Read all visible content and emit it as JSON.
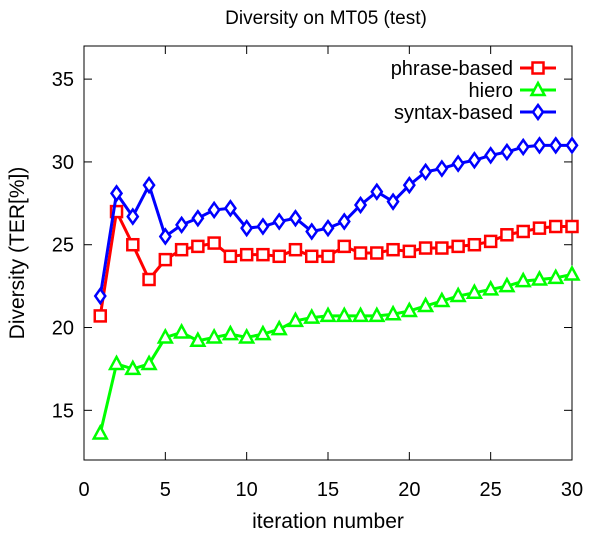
{
  "chart_data": {
    "type": "line",
    "title": "Diversity on MT05 (test)",
    "xlabel": "iteration number",
    "ylabel": "Diversity (TER[%])",
    "xlim": [
      0,
      30
    ],
    "ylim": [
      12,
      37
    ],
    "xticks": [
      0,
      5,
      10,
      15,
      20,
      25,
      30
    ],
    "yticks": [
      15,
      20,
      25,
      30,
      35
    ],
    "x_tick_labels": [
      "0",
      "5",
      "10",
      "15",
      "20",
      "25",
      "30"
    ],
    "y_tick_labels": [
      "15",
      "20",
      "25",
      "30",
      "35"
    ],
    "legend_position": "top-right",
    "grid": false,
    "x": [
      1,
      2,
      3,
      4,
      5,
      6,
      7,
      8,
      9,
      10,
      11,
      12,
      13,
      14,
      15,
      16,
      17,
      18,
      19,
      20,
      21,
      22,
      23,
      24,
      25,
      26,
      27,
      28,
      29,
      30
    ],
    "series": [
      {
        "name": "phrase-based",
        "color": "#ff0000",
        "marker": "square",
        "values": [
          20.7,
          27.0,
          25.0,
          22.9,
          24.1,
          24.7,
          24.9,
          25.1,
          24.3,
          24.4,
          24.4,
          24.3,
          24.7,
          24.3,
          24.3,
          24.9,
          24.5,
          24.5,
          24.7,
          24.6,
          24.8,
          24.8,
          24.9,
          25.0,
          25.2,
          25.6,
          25.8,
          26.0,
          26.1,
          26.1
        ]
      },
      {
        "name": "hiero",
        "color": "#00ff00",
        "marker": "triangle",
        "values": [
          13.6,
          17.8,
          17.5,
          17.8,
          19.4,
          19.7,
          19.2,
          19.4,
          19.6,
          19.4,
          19.6,
          19.9,
          20.4,
          20.6,
          20.7,
          20.7,
          20.7,
          20.7,
          20.8,
          21.0,
          21.3,
          21.6,
          21.9,
          22.1,
          22.3,
          22.5,
          22.8,
          22.9,
          23.0,
          23.2
        ]
      },
      {
        "name": "syntax-based",
        "color": "#0000ff",
        "marker": "diamond",
        "values": [
          21.9,
          28.1,
          26.7,
          28.6,
          25.5,
          26.2,
          26.6,
          27.1,
          27.2,
          26.0,
          26.1,
          26.4,
          26.6,
          25.8,
          26.0,
          26.4,
          27.4,
          28.2,
          27.6,
          28.6,
          29.4,
          29.6,
          29.9,
          30.1,
          30.4,
          30.6,
          30.9,
          31.0,
          31.0,
          31.0
        ]
      }
    ]
  }
}
